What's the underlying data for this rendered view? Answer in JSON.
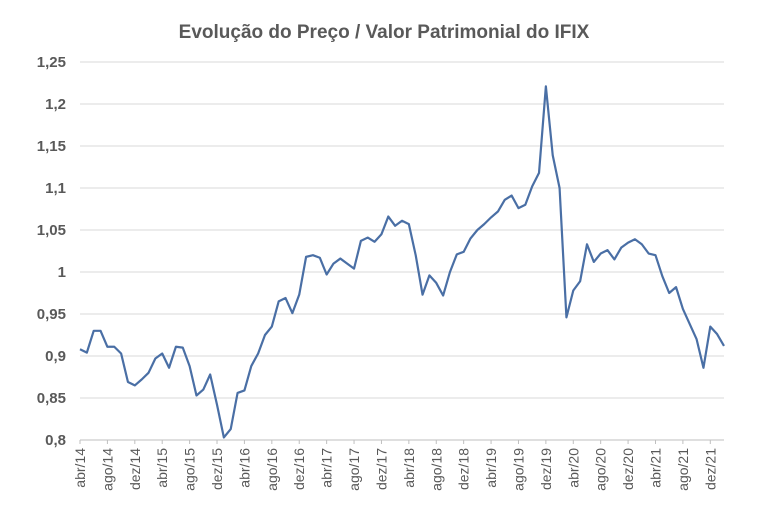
{
  "chart_data": {
    "type": "line",
    "title": "Evolução do Preço / Valor Patrimonial do IFIX",
    "xlabel": "",
    "ylabel": "",
    "ylim": [
      0.8,
      1.25
    ],
    "yticks": [
      "0,8",
      "0,85",
      "0,9",
      "0,95",
      "1",
      "1,05",
      "1,1",
      "1,15",
      "1,2",
      "1,25"
    ],
    "ytick_values": [
      0.8,
      0.85,
      0.9,
      0.95,
      1.0,
      1.05,
      1.1,
      1.15,
      1.2,
      1.25
    ],
    "xtick_labels": [
      "abr/14",
      "ago/14",
      "dez/14",
      "abr/15",
      "ago/15",
      "dez/15",
      "abr/16",
      "ago/16",
      "dez/16",
      "abr/17",
      "ago/17",
      "dez/17",
      "abr/18",
      "ago/18",
      "dez/18",
      "abr/19",
      "ago/19",
      "dez/19",
      "abr/20",
      "ago/20",
      "dez/20",
      "abr/21",
      "ago/21",
      "dez/21"
    ],
    "grid": true,
    "line_color": "#4a6fa5",
    "series": [
      {
        "name": "",
        "values": [
          0.908,
          0.904,
          0.93,
          0.93,
          0.911,
          0.911,
          0.903,
          0.869,
          0.865,
          0.872,
          0.88,
          0.897,
          0.903,
          0.886,
          0.911,
          0.91,
          0.888,
          0.853,
          0.86,
          0.878,
          0.842,
          0.803,
          0.813,
          0.856,
          0.859,
          0.888,
          0.903,
          0.925,
          0.935,
          0.965,
          0.969,
          0.951,
          0.973,
          1.018,
          1.02,
          1.017,
          0.997,
          1.01,
          1.016,
          1.01,
          1.004,
          1.037,
          1.041,
          1.036,
          1.045,
          1.066,
          1.055,
          1.061,
          1.057,
          1.02,
          0.973,
          0.996,
          0.987,
          0.972,
          1.0,
          1.021,
          1.024,
          1.04,
          1.05,
          1.057,
          1.065,
          1.072,
          1.086,
          1.091,
          1.076,
          1.08,
          1.102,
          1.118,
          1.221,
          1.139,
          1.1,
          0.946,
          0.978,
          0.989,
          1.033,
          1.012,
          1.022,
          1.026,
          1.015,
          1.029,
          1.035,
          1.039,
          1.033,
          1.022,
          1.02,
          0.995,
          0.975,
          0.982,
          0.956,
          0.938,
          0.92,
          0.886,
          0.935,
          0.926,
          0.912
        ]
      }
    ]
  }
}
